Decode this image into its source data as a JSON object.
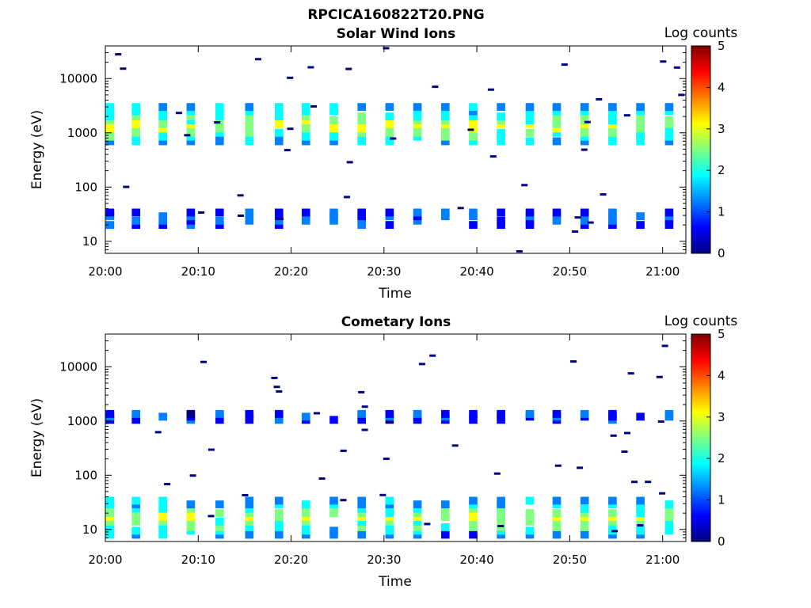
{
  "figure": {
    "main_title": "RPCICA160822T20.PNG"
  },
  "colormap": [
    "#00007f",
    "#0000ff",
    "#0080ff",
    "#00ffff",
    "#80ff80",
    "#ffff00",
    "#ff8000",
    "#ff0000",
    "#7f0000"
  ],
  "chart_data": [
    {
      "type": "heatmap",
      "title": "Solar Wind Ions",
      "xlabel": "Time",
      "ylabel": "Energy (eV)",
      "x_tick_labels": [
        "20:00",
        "20:10",
        "20:20",
        "20:30",
        "20:40",
        "20:50",
        "21:00"
      ],
      "x_tick_minutes": [
        0,
        10,
        20,
        30,
        40,
        50,
        60
      ],
      "xlim_minutes": [
        0,
        62.5
      ],
      "y_scale": "log",
      "ylim": [
        6,
        40000
      ],
      "y_tick_labels": [
        "10",
        "100",
        "1000",
        "10000"
      ],
      "y_tick_values": [
        10,
        100,
        1000,
        10000
      ],
      "colorbar": {
        "label": "Log counts",
        "ticks": [
          "0",
          "1",
          "2",
          "3",
          "4",
          "5"
        ],
        "range": [
          0,
          5
        ]
      },
      "sweep_times_minutes": [
        0.5,
        3.3,
        6.2,
        9.2,
        12.3,
        15.5,
        18.7,
        21.6,
        24.6,
        27.6,
        30.6,
        33.6,
        36.6,
        39.6,
        42.6,
        45.7,
        48.6,
        51.6,
        54.6,
        57.6,
        60.7
      ],
      "bands": [
        {
          "name": "main",
          "energies": [
            700,
            850,
            1000,
            1200,
            1450,
            1700,
            2000,
            2500,
            3000
          ],
          "peak": 3.0
        },
        {
          "name": "low",
          "energies": [
            20,
            24,
            29,
            34
          ],
          "peak": 1.3
        }
      ]
    },
    {
      "type": "heatmap",
      "title": "Cometary Ions",
      "xlabel": "Time",
      "ylabel": "Energy (eV)",
      "x_tick_labels": [
        "20:00",
        "20:10",
        "20:20",
        "20:30",
        "20:40",
        "20:50",
        "21:00"
      ],
      "x_tick_minutes": [
        0,
        10,
        20,
        30,
        40,
        50,
        60
      ],
      "xlim_minutes": [
        0,
        62.5
      ],
      "y_scale": "log",
      "ylim": [
        6,
        40000
      ],
      "y_tick_labels": [
        "10",
        "100",
        "1000",
        "10000"
      ],
      "y_tick_values": [
        10,
        100,
        1000,
        10000
      ],
      "colorbar": {
        "label": "Log counts",
        "ticks": [
          "0",
          "1",
          "2",
          "3",
          "4",
          "5"
        ],
        "range": [
          0,
          5
        ]
      },
      "sweep_times_minutes": [
        0.5,
        3.3,
        6.2,
        9.2,
        12.3,
        15.5,
        18.7,
        21.6,
        24.6,
        27.6,
        30.6,
        33.6,
        36.6,
        39.6,
        42.6,
        45.7,
        48.6,
        51.6,
        54.6,
        57.6,
        60.7
      ],
      "bands": [
        {
          "name": "main",
          "energies": [
            1050,
            1200,
            1350
          ],
          "peak": 1.0
        },
        {
          "name": "low",
          "energies": [
            8,
            9.5,
            11,
            14,
            17,
            20,
            24,
            29,
            34
          ],
          "peak": 2.8
        }
      ]
    }
  ]
}
